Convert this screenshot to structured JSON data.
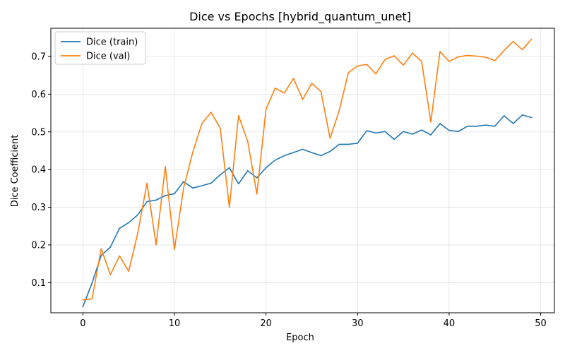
{
  "chart_data": {
    "type": "line",
    "title": "Dice vs Epochs [hybrid_quantum_unet]",
    "xlabel": "Epoch",
    "ylabel": "Dice Coefficient",
    "xlim": [
      -3.5,
      51.5
    ],
    "ylim": [
      0.02,
      0.775
    ],
    "xticks": [
      0,
      10,
      20,
      30,
      40,
      50
    ],
    "yticks": [
      0.1,
      0.2,
      0.3,
      0.4,
      0.5,
      0.6,
      0.7
    ],
    "grid": true,
    "legend_position": "top-left",
    "x": [
      0,
      1,
      2,
      3,
      4,
      5,
      6,
      7,
      8,
      9,
      10,
      11,
      12,
      13,
      14,
      15,
      16,
      17,
      18,
      19,
      20,
      21,
      22,
      23,
      24,
      25,
      26,
      27,
      28,
      29,
      30,
      31,
      32,
      33,
      34,
      35,
      36,
      37,
      38,
      39,
      40,
      41,
      42,
      43,
      44,
      45,
      46,
      47,
      48,
      49
    ],
    "series": [
      {
        "name": "Dice (train)",
        "color": "#1f77b4",
        "values": [
          0.036,
          0.099,
          0.172,
          0.194,
          0.244,
          0.259,
          0.28,
          0.315,
          0.319,
          0.331,
          0.336,
          0.368,
          0.351,
          0.357,
          0.364,
          0.386,
          0.405,
          0.362,
          0.397,
          0.378,
          0.405,
          0.425,
          0.437,
          0.445,
          0.454,
          0.445,
          0.437,
          0.448,
          0.467,
          0.467,
          0.47,
          0.503,
          0.497,
          0.501,
          0.48,
          0.501,
          0.494,
          0.505,
          0.492,
          0.522,
          0.504,
          0.501,
          0.515,
          0.515,
          0.518,
          0.515,
          0.543,
          0.522,
          0.545,
          0.538
        ]
      },
      {
        "name": "Dice (val)",
        "color": "#ff7f0e",
        "values": [
          0.054,
          0.057,
          0.19,
          0.121,
          0.171,
          0.13,
          0.232,
          0.364,
          0.2,
          0.408,
          0.188,
          0.351,
          0.446,
          0.522,
          0.552,
          0.51,
          0.3,
          0.543,
          0.475,
          0.335,
          0.56,
          0.616,
          0.603,
          0.642,
          0.586,
          0.629,
          0.607,
          0.483,
          0.557,
          0.657,
          0.675,
          0.679,
          0.654,
          0.692,
          0.702,
          0.677,
          0.709,
          0.687,
          0.526,
          0.713,
          0.687,
          0.699,
          0.703,
          0.701,
          0.698,
          0.689,
          0.716,
          0.74,
          0.718,
          0.746
        ]
      }
    ]
  }
}
